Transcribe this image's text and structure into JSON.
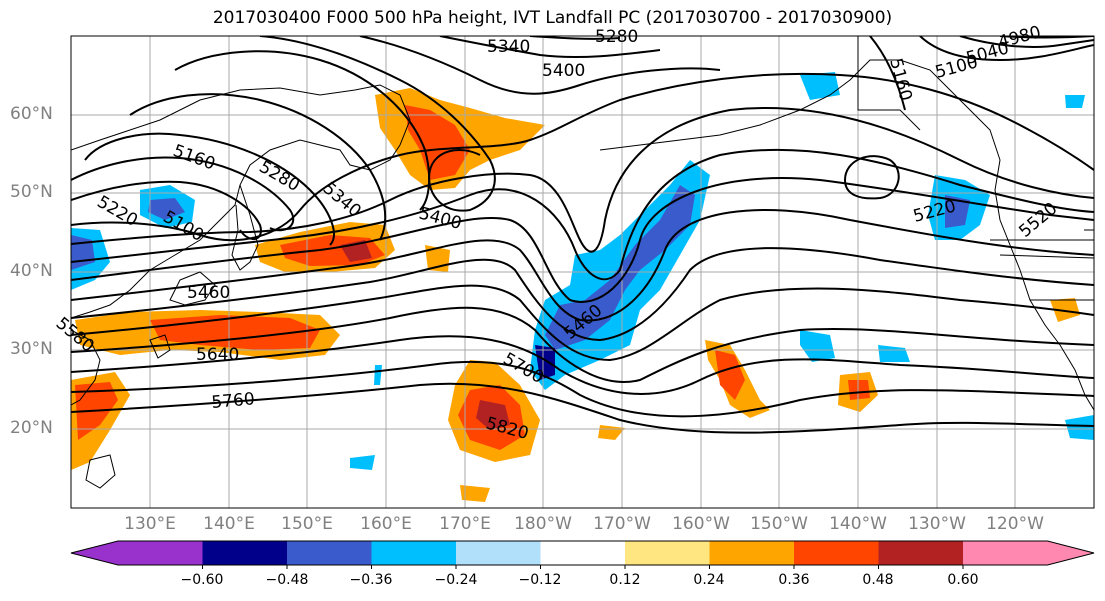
{
  "map": {
    "title": "2017030400 F000 500 hPa height, IVT Landfall PC (2017030700 - 2017030900)",
    "lat_labels": [
      "60°N",
      "50°N",
      "40°N",
      "30°N",
      "20°N"
    ],
    "lon_labels": [
      "130°E",
      "140°E",
      "150°E",
      "160°E",
      "170°E",
      "180°W",
      "170°W",
      "160°W",
      "150°W",
      "140°W",
      "130°W",
      "120°W"
    ],
    "contour_labels": [
      "5340",
      "5280",
      "5400",
      "4980",
      "5040",
      "5100",
      "5160",
      "5160",
      "5220",
      "5100",
      "5280",
      "5340",
      "5400",
      "5220",
      "5460",
      "5460",
      "5520",
      "5580",
      "5640",
      "5700",
      "5760",
      "5820"
    ]
  },
  "colorbar": {
    "tick_labels": [
      "−0.60",
      "−0.48",
      "−0.36",
      "−0.24",
      "−0.12",
      "0.12",
      "0.24",
      "0.36",
      "0.48",
      "0.60"
    ],
    "colors": [
      "#9932cc",
      "#00008b",
      "#3a5bcc",
      "#00bfff",
      "#b0e0fa",
      "#ffffff",
      "#ffe680",
      "#ffa500",
      "#ff4500",
      "#b22222",
      "#ff88b0"
    ]
  }
}
